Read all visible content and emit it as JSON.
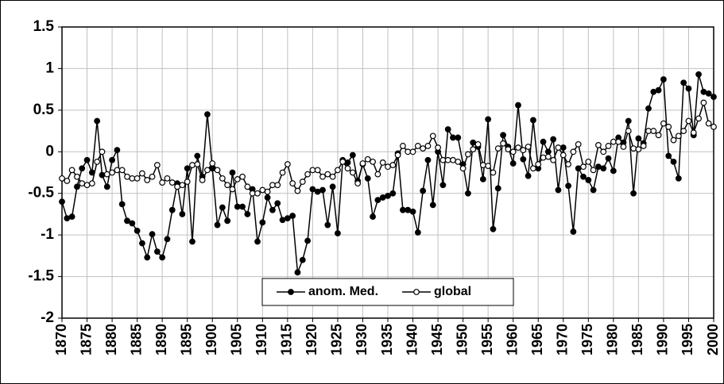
{
  "chart_data": {
    "type": "line",
    "x": [
      1870,
      1871,
      1872,
      1873,
      1874,
      1875,
      1876,
      1877,
      1878,
      1879,
      1880,
      1881,
      1882,
      1883,
      1884,
      1885,
      1886,
      1887,
      1888,
      1889,
      1890,
      1891,
      1892,
      1893,
      1894,
      1895,
      1896,
      1897,
      1898,
      1899,
      1900,
      1901,
      1902,
      1903,
      1904,
      1905,
      1906,
      1907,
      1908,
      1909,
      1910,
      1911,
      1912,
      1913,
      1914,
      1915,
      1916,
      1917,
      1918,
      1919,
      1920,
      1921,
      1922,
      1923,
      1924,
      1925,
      1926,
      1927,
      1928,
      1929,
      1930,
      1931,
      1932,
      1933,
      1934,
      1935,
      1936,
      1937,
      1938,
      1939,
      1940,
      1941,
      1942,
      1943,
      1944,
      1945,
      1946,
      1947,
      1948,
      1949,
      1950,
      1951,
      1952,
      1953,
      1954,
      1955,
      1956,
      1957,
      1958,
      1959,
      1960,
      1961,
      1962,
      1963,
      1964,
      1965,
      1966,
      1967,
      1968,
      1969,
      1970,
      1971,
      1972,
      1973,
      1974,
      1975,
      1976,
      1977,
      1978,
      1979,
      1980,
      1981,
      1982,
      1983,
      1984,
      1985,
      1986,
      1987,
      1988,
      1989,
      1990,
      1991,
      1992,
      1993,
      1994,
      1995,
      1996,
      1997,
      1998,
      1999,
      2000
    ],
    "series": [
      {
        "name": "anom. Med.",
        "color": "#000000",
        "marker_fill": "#000000",
        "values": [
          -0.6,
          -0.8,
          -0.78,
          -0.42,
          -0.2,
          -0.1,
          -0.25,
          0.37,
          -0.28,
          -0.42,
          -0.1,
          0.02,
          -0.63,
          -0.83,
          -0.86,
          -0.95,
          -1.1,
          -1.27,
          -0.99,
          -1.2,
          -1.27,
          -1.05,
          -0.7,
          -0.38,
          -0.75,
          -0.2,
          -1.08,
          -0.05,
          -0.3,
          0.45,
          -0.2,
          -0.88,
          -0.67,
          -0.83,
          -0.25,
          -0.66,
          -0.66,
          -0.75,
          -0.45,
          -1.08,
          -0.85,
          -0.55,
          -0.7,
          -0.62,
          -0.82,
          -0.8,
          -0.77,
          -1.45,
          -1.3,
          -1.07,
          -0.45,
          -0.48,
          -0.46,
          -0.88,
          -0.42,
          -0.98,
          -0.1,
          -0.13,
          -0.04,
          -0.35,
          -0.15,
          -0.32,
          -0.78,
          -0.58,
          -0.55,
          -0.53,
          -0.5,
          -0.02,
          -0.7,
          -0.7,
          -0.72,
          -0.97,
          -0.47,
          -0.1,
          -0.64,
          0.0,
          -0.4,
          0.27,
          0.17,
          0.17,
          -0.15,
          -0.5,
          0.11,
          0.06,
          -0.33,
          0.39,
          -0.93,
          -0.44,
          0.2,
          0.06,
          -0.14,
          0.56,
          -0.09,
          -0.29,
          0.38,
          -0.2,
          0.12,
          0.0,
          0.15,
          -0.46,
          0.05,
          -0.41,
          -0.96,
          -0.2,
          -0.3,
          -0.34,
          -0.46,
          -0.18,
          -0.2,
          -0.08,
          -0.23,
          0.17,
          0.11,
          0.37,
          -0.5,
          0.16,
          0.1,
          0.52,
          0.72,
          0.74,
          0.87,
          -0.05,
          -0.12,
          -0.32,
          0.83,
          0.76,
          0.2,
          0.93,
          0.72,
          0.7,
          0.66
        ]
      },
      {
        "name": "global",
        "color": "#000000",
        "marker_fill": "#ffffff",
        "values": [
          -0.32,
          -0.35,
          -0.22,
          -0.3,
          -0.38,
          -0.4,
          -0.38,
          -0.12,
          0.0,
          -0.27,
          -0.25,
          -0.22,
          -0.22,
          -0.3,
          -0.32,
          -0.32,
          -0.26,
          -0.34,
          -0.3,
          -0.16,
          -0.37,
          -0.32,
          -0.37,
          -0.42,
          -0.4,
          -0.36,
          -0.16,
          -0.15,
          -0.34,
          -0.22,
          -0.14,
          -0.22,
          -0.32,
          -0.4,
          -0.45,
          -0.33,
          -0.3,
          -0.42,
          -0.5,
          -0.5,
          -0.46,
          -0.48,
          -0.4,
          -0.4,
          -0.25,
          -0.15,
          -0.38,
          -0.47,
          -0.36,
          -0.27,
          -0.22,
          -0.22,
          -0.3,
          -0.27,
          -0.3,
          -0.22,
          -0.12,
          -0.2,
          -0.25,
          -0.38,
          -0.14,
          -0.09,
          -0.12,
          -0.27,
          -0.13,
          -0.18,
          -0.16,
          -0.04,
          0.07,
          0.0,
          0.0,
          0.07,
          0.04,
          0.07,
          0.19,
          0.05,
          -0.1,
          -0.1,
          -0.1,
          -0.12,
          -0.2,
          -0.03,
          0.03,
          0.09,
          -0.16,
          -0.17,
          -0.25,
          0.04,
          0.1,
          0.03,
          0.0,
          0.05,
          0.02,
          0.06,
          -0.2,
          -0.15,
          -0.07,
          -0.06,
          -0.1,
          0.05,
          -0.04,
          -0.15,
          0.0,
          0.09,
          -0.18,
          -0.12,
          -0.22,
          0.08,
          0.0,
          0.07,
          0.12,
          0.12,
          0.06,
          0.25,
          0.04,
          0.03,
          0.07,
          0.25,
          0.25,
          0.2,
          0.34,
          0.3,
          0.14,
          0.19,
          0.25,
          0.37,
          0.23,
          0.4,
          0.59,
          0.34,
          0.3
        ]
      }
    ],
    "xlim": [
      1870,
      2000
    ],
    "xticks": [
      1870,
      1875,
      1880,
      1885,
      1890,
      1895,
      1900,
      1905,
      1910,
      1915,
      1920,
      1925,
      1930,
      1935,
      1940,
      1945,
      1950,
      1955,
      1960,
      1965,
      1970,
      1975,
      1980,
      1985,
      1990,
      1995,
      2000
    ],
    "ylim": [
      -2,
      1.5
    ],
    "yticks": [
      1.5,
      1,
      0.5,
      0,
      -0.5,
      -1,
      -1.5,
      -2
    ],
    "grid": true,
    "legend_position": "bottom-center"
  }
}
